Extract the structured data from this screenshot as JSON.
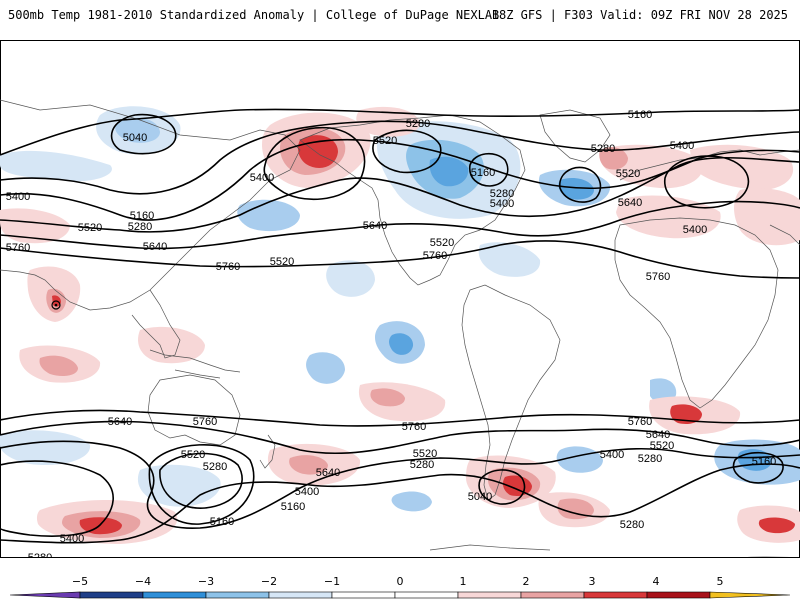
{
  "header": {
    "title": "500mb Temp 1981-2010 Standardized Anomaly | College of DuPage NEXLAB",
    "run_info": "18Z GFS | F303 Valid: 09Z FRI NOV 28 2025"
  },
  "colors": {
    "contour": "#000000",
    "land_outline": "#555555",
    "cold": [
      "#5a2ca0",
      "#1f3f88",
      "#2f8fd8",
      "#8dc2e8",
      "#d6e6f5"
    ],
    "warm": [
      "#f7d7d7",
      "#e8a3a3",
      "#d8383a",
      "#a8121a",
      "#7a0a10",
      "#f2c020"
    ]
  },
  "height_labels": {
    "l5040": "5040",
    "l5160": "5160",
    "l5280": "5280",
    "l5400": "5400",
    "l5520": "5520",
    "l5640": "5640",
    "l5760": "5760"
  },
  "colorbar": {
    "ticks": [
      "−5",
      "−4",
      "−3",
      "−2",
      "−1",
      "0",
      "1",
      "2",
      "3",
      "4",
      "5"
    ]
  }
}
